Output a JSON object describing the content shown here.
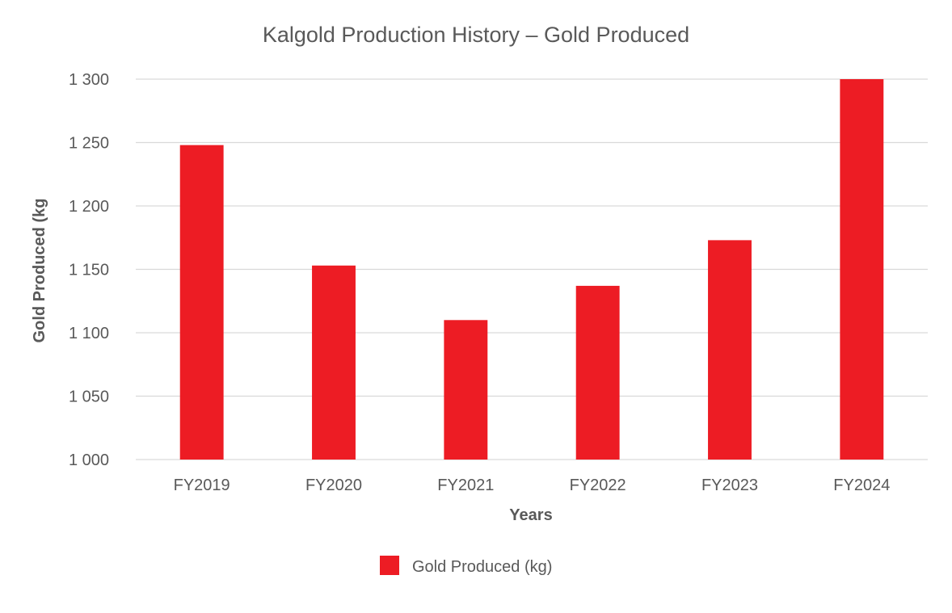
{
  "chart_data": {
    "type": "bar",
    "title": "Kalgold Production History – Gold Produced",
    "xlabel": "Years",
    "ylabel": "Gold Produced (kg",
    "categories": [
      "FY2019",
      "FY2020",
      "FY2021",
      "FY2022",
      "FY2023",
      "FY2024"
    ],
    "series": [
      {
        "name": "Gold Produced (kg)",
        "values": [
          1248,
          1153,
          1110,
          1137,
          1173,
          1300
        ],
        "color": "#ed1c24"
      }
    ],
    "ylim": [
      1000,
      1300
    ],
    "yticks": [
      1000,
      1050,
      1100,
      1150,
      1200,
      1250,
      1300
    ],
    "ytick_labels": [
      "1 000",
      "1 050",
      "1 100",
      "1 150",
      "1 200",
      "1 250",
      "1 300"
    ],
    "grid": true,
    "legend_position": "bottom"
  }
}
